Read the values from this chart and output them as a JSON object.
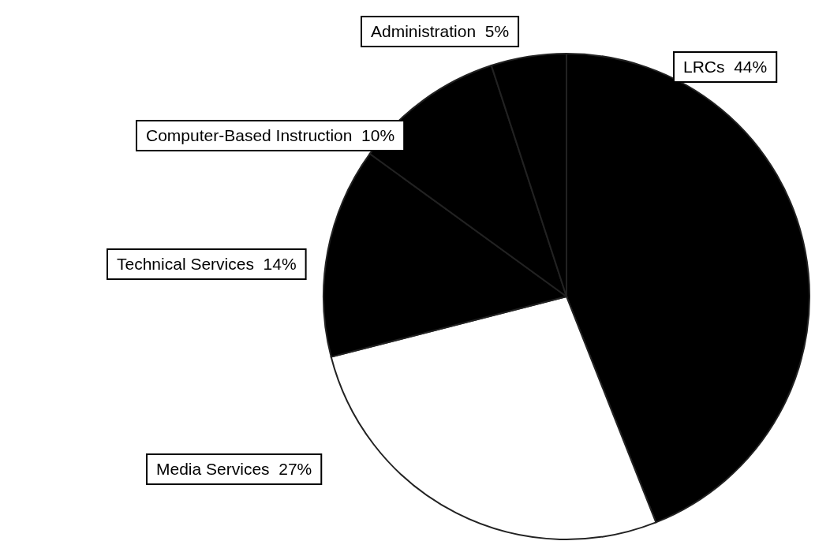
{
  "chart_data": {
    "type": "pie",
    "categories": [
      "LRCs",
      "Media Services",
      "Technical Services",
      "Computer-Based Instruction",
      "Administration"
    ],
    "values": [
      44,
      27,
      14,
      10,
      5
    ],
    "value_labels": [
      "44%",
      "27%",
      "14%",
      "10%",
      "5%"
    ],
    "colors": [
      "#000000",
      "#ffffff",
      "#000000",
      "#000000",
      "#000000"
    ]
  }
}
